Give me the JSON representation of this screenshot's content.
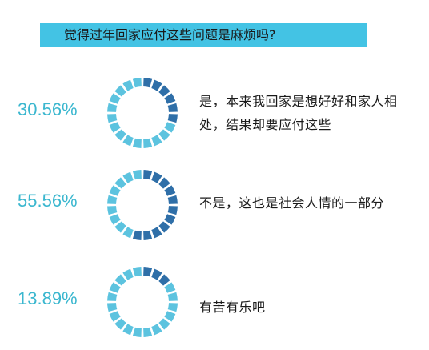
{
  "chart_data": {
    "type": "pie",
    "title": "觉得过年回家应付这些问题是麻烦吗?",
    "categories": [
      "是，本来我回家是想好好和家人相处，结果却要应付这些",
      "不是，这也是社会人情的一部分",
      "有苦有乐吧"
    ],
    "values": [
      30.56,
      55.56,
      13.89
    ],
    "value_labels": [
      "30.56%",
      "55.56%",
      "13.89%"
    ],
    "unit": "%",
    "segments_per_ring": 20
  },
  "colors": {
    "banner": "#43c3e4",
    "percent_text": "#3bb7cf",
    "ring_filled": "#2f6fa8",
    "ring_empty": "#5cc3df"
  }
}
